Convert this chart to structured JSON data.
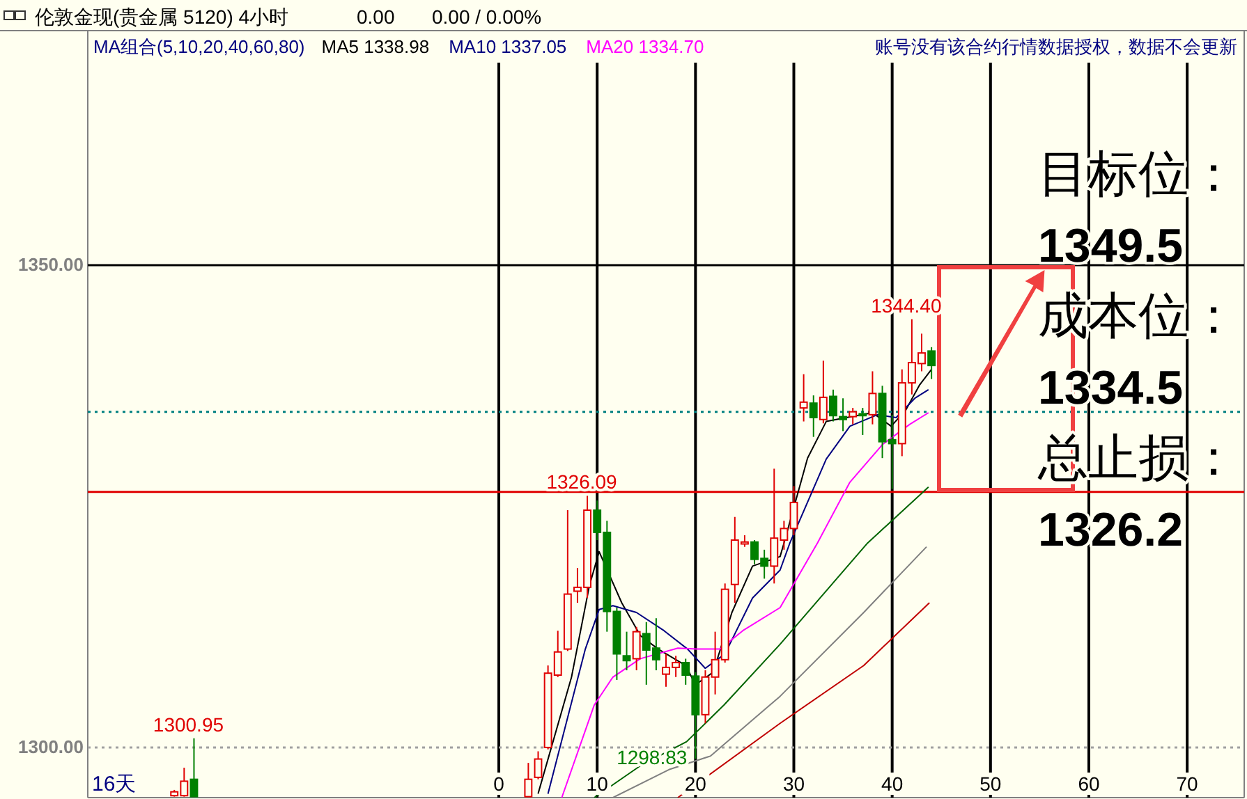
{
  "chart_data": {
    "type": "candlestick",
    "title": "伦敦金现(贵金属 5120) 4小时",
    "legend_title": "MA组合(5,10,20,40,60,80)",
    "x": [
      -33,
      -32,
      -31,
      3,
      4,
      5,
      6,
      7,
      8,
      9,
      10,
      11,
      12,
      13,
      14,
      15,
      16,
      17,
      18,
      19,
      20,
      21,
      22,
      23,
      24,
      25,
      26,
      27,
      28,
      29,
      30,
      31,
      32,
      33,
      34,
      35,
      36,
      37,
      38,
      39,
      40,
      41,
      42,
      43,
      44
    ],
    "ohlc": [
      [
        1295.0,
        1295.6,
        1294.9,
        1295.4
      ],
      [
        1295.0,
        1297.9,
        1294.9,
        1296.5
      ],
      [
        1296.7,
        1300.95,
        1294.9,
        1294.9
      ],
      [
        1294.9,
        1298.4,
        1294.9,
        1296.7
      ],
      [
        1296.9,
        1299.6,
        1296.7,
        1298.8
      ],
      [
        1300.0,
        1308.5,
        1299.8,
        1307.7
      ],
      [
        1307.5,
        1312.1,
        1307.3,
        1309.9
      ],
      [
        1310.2,
        1324.6,
        1310.0,
        1315.9
      ],
      [
        1316.2,
        1318.6,
        1315.0,
        1316.6
      ],
      [
        1316.6,
        1326.09,
        1315.5,
        1324.6
      ],
      [
        1324.6,
        1325.6,
        1321.5,
        1322.3
      ],
      [
        1322.3,
        1323.5,
        1312.0,
        1314.1
      ],
      [
        1314.1,
        1314.5,
        1307.0,
        1309.7
      ],
      [
        1309.5,
        1312.0,
        1308.0,
        1309.0
      ],
      [
        1309.2,
        1312.5,
        1308.0,
        1312.0
      ],
      [
        1311.8,
        1313.0,
        1306.5,
        1310.1
      ],
      [
        1310.3,
        1313.4,
        1308.0,
        1309.1
      ],
      [
        1307.6,
        1309.7,
        1306.3,
        1308.3
      ],
      [
        1308.3,
        1309.5,
        1307.3,
        1308.8
      ],
      [
        1308.8,
        1309.2,
        1306.5,
        1307.5
      ],
      [
        1307.4,
        1307.8,
        1298.83,
        1303.4
      ],
      [
        1303.4,
        1308.0,
        1302.5,
        1307.3
      ],
      [
        1307.3,
        1312.0,
        1305.5,
        1309.1
      ],
      [
        1309.1,
        1317.0,
        1308.8,
        1316.4
      ],
      [
        1316.9,
        1323.9,
        1315.0,
        1321.5
      ],
      [
        1321.1,
        1322.0,
        1320.8,
        1321.3
      ],
      [
        1321.3,
        1321.5,
        1319.0,
        1319.5
      ],
      [
        1319.6,
        1320.5,
        1317.5,
        1318.8
      ],
      [
        1318.8,
        1328.9,
        1317.0,
        1321.7
      ],
      [
        1321.5,
        1323.5,
        1320.5,
        1322.7
      ],
      [
        1322.7,
        1327.1,
        1322.0,
        1325.4
      ],
      [
        1335.2,
        1338.7,
        1333.8,
        1335.8
      ],
      [
        1335.7,
        1336.5,
        1332.2,
        1334.2
      ],
      [
        1334.0,
        1340.1,
        1333.6,
        1336.3
      ],
      [
        1336.4,
        1337.1,
        1333.8,
        1334.4
      ],
      [
        1334.3,
        1336.2,
        1332.8,
        1334.0
      ],
      [
        1334.3,
        1335.2,
        1333.5,
        1334.8
      ],
      [
        1334.6,
        1335.2,
        1332.4,
        1334.4
      ],
      [
        1334.5,
        1339.0,
        1333.5,
        1336.7
      ],
      [
        1336.7,
        1337.5,
        1330.0,
        1331.7
      ],
      [
        1331.9,
        1334.5,
        1326.8,
        1331.5
      ],
      [
        1331.5,
        1339.2,
        1330.2,
        1337.8
      ],
      [
        1337.8,
        1344.4,
        1336.6,
        1339.9
      ],
      [
        1339.8,
        1342.9,
        1339.0,
        1340.9
      ],
      [
        1341.1,
        1341.5,
        1338.2,
        1339.6
      ]
    ],
    "series": [
      {
        "name": "MA5 1338.98",
        "type": "line",
        "color": "#000000",
        "x": [
          4,
          7.4,
          9.2,
          10.2,
          12.5,
          14.4,
          16.2,
          19,
          20,
          21.8,
          23.7,
          25.8,
          28.6,
          29,
          31.4,
          33.3,
          34.3,
          38,
          39.9,
          41.4,
          42.8,
          44
        ],
        "values": [
          1295.2,
          1307.3,
          1316.7,
          1320.3,
          1315.0,
          1311.6,
          1310.2,
          1308.5,
          1306.5,
          1307.8,
          1314.0,
          1318.8,
          1319.8,
          1321.2,
          1330.0,
          1333.8,
          1334.0,
          1334.7,
          1333.3,
          1335.0,
          1337.6,
          1339.2
        ]
      },
      {
        "name": "MA10 1337.05",
        "type": "line",
        "color": "#000080",
        "x": [
          5,
          8.8,
          10.2,
          11.6,
          14,
          16.8,
          19.2,
          21,
          23,
          25.8,
          28.6,
          29.6,
          33.3,
          35.7,
          38.5,
          40.4,
          42.3,
          43.7
        ],
        "values": [
          1295.2,
          1310.2,
          1314.3,
          1314.7,
          1314.0,
          1312.1,
          1310.2,
          1308.2,
          1309.7,
          1315.5,
          1318.4,
          1321.2,
          1329.9,
          1333.3,
          1334.5,
          1334.2,
          1336.2,
          1337.1
        ]
      },
      {
        "name": "MA20 1334.70",
        "type": "line",
        "color": "#ff00ff",
        "x": [
          6.4,
          9.7,
          11.6,
          14.4,
          18.2,
          20.1,
          22.5,
          24.8,
          28.6,
          32.4,
          35.7,
          39,
          41.8,
          43.7
        ],
        "values": [
          1294.8,
          1304.4,
          1307.3,
          1309.2,
          1310.3,
          1310.2,
          1310.2,
          1312.1,
          1314.5,
          1321.2,
          1327.5,
          1331.4,
          1333.5,
          1334.7
        ]
      },
      {
        "type": "line",
        "color": "#006400",
        "x": [
          9.7,
          14.4,
          19.1,
          22.9,
          28.6,
          37.5,
          43.7
        ],
        "values": [
          1294.8,
          1298.1,
          1300.6,
          1304.4,
          1310.7,
          1321.2,
          1327.0
        ]
      },
      {
        "type": "line",
        "color": "#808080",
        "x": [
          11.6,
          17.3,
          21.5,
          28.6,
          37.1,
          43.5
        ],
        "values": [
          1294.8,
          1297.7,
          1299.1,
          1305.3,
          1314.0,
          1320.8
        ]
      },
      {
        "type": "line",
        "color": "#c00000",
        "x": [
          18.2,
          28.6,
          37.1,
          43.8
        ],
        "values": [
          1294.8,
          1302.5,
          1308.5,
          1315.0
        ]
      }
    ],
    "xlim": [
      -41.8,
      75.8
    ],
    "xticks": [
      0,
      10,
      20,
      30,
      40,
      50,
      60,
      70
    ],
    "ylim": [
      1294.8,
      1371
    ],
    "yticks": [
      {
        "value": 1300,
        "label": "1300.00"
      },
      {
        "value": 1350,
        "label": "1350.00"
      }
    ],
    "grid": "x",
    "legend": "top",
    "ref_lines": [
      {
        "axis": "y",
        "value": 1300,
        "color": "#a0a0a0",
        "line_style": "dotted"
      },
      {
        "axis": "y",
        "value": 1350,
        "color": "#000000",
        "line_style": "solid"
      },
      {
        "axis": "y",
        "value": 1334.8,
        "color": "#008080",
        "line_style": "dotted"
      },
      {
        "axis": "y",
        "value": 1326.5,
        "color": "#e00000",
        "line_style": "solid"
      }
    ],
    "annotations": [
      "0.00",
      "0.00 / 0.00%",
      "账号没有该合约行情数据授权，数据不会更新",
      "16天",
      "目标位：",
      {
        "text": "1349.5",
        "x": 55.5,
        "y": 1349.5
      },
      {
        "text": "成本位：",
        "x": 46.7,
        "y": 1334.5
      },
      "1334.5",
      "总止损：",
      "1326.2",
      {
        "text": "1344.40",
        "x": 42,
        "y": 1344.4
      },
      {
        "text": "1326.09",
        "x": 9,
        "y": 1326.09
      },
      {
        "text": "1300.95",
        "x": -31,
        "y": 1300.95
      },
      {
        "text": "1298.83",
        "x": 20,
        "y": 1298.83
      }
    ]
  }
}
